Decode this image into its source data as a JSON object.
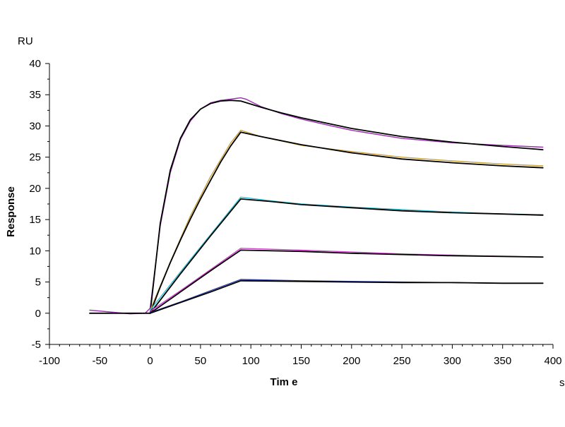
{
  "chart_data": {
    "type": "line",
    "title": "",
    "xlabel": "Tim e",
    "ylabel": "Response",
    "x_unit": "s",
    "y_unit": "RU",
    "xlim": [
      -100,
      400
    ],
    "ylim": [
      -5,
      40
    ],
    "x_ticks": [
      -100,
      -50,
      0,
      50,
      100,
      150,
      200,
      250,
      300,
      350,
      400
    ],
    "y_ticks": [
      -5,
      0,
      5,
      10,
      15,
      20,
      25,
      30,
      35,
      40
    ],
    "x_tick_labels": [
      "-100",
      "-50",
      "0",
      "50",
      "100",
      "150",
      "200",
      "250",
      "300",
      "350",
      "400"
    ],
    "y_tick_labels": [
      "-5",
      "0",
      "5",
      "10",
      "15",
      "20",
      "25",
      "30",
      "35",
      "40"
    ],
    "grid": false,
    "legend": "none",
    "series": [
      {
        "color": "#9a2fb0",
        "role": "measured",
        "points": [
          [
            -60,
            0.5
          ],
          [
            -40,
            0.2
          ],
          [
            -20,
            -0.1
          ],
          [
            -5,
            0
          ],
          [
            0,
            0.8
          ],
          [
            10,
            14
          ],
          [
            20,
            22.5
          ],
          [
            30,
            27.8
          ],
          [
            40,
            30.8
          ],
          [
            50,
            32.7
          ],
          [
            60,
            33.7
          ],
          [
            70,
            34.1
          ],
          [
            80,
            34.3
          ],
          [
            85,
            34.4
          ],
          [
            90,
            34.5
          ],
          [
            95,
            34.3
          ],
          [
            110,
            33.1
          ],
          [
            130,
            32
          ],
          [
            150,
            31.1
          ],
          [
            180,
            30
          ],
          [
            200,
            29.3
          ],
          [
            250,
            28
          ],
          [
            300,
            27.3
          ],
          [
            350,
            26.9
          ],
          [
            390,
            26.6
          ]
        ]
      },
      {
        "color": "#000000",
        "role": "fit",
        "points": [
          [
            -60,
            0
          ],
          [
            0,
            0
          ],
          [
            10,
            14.4
          ],
          [
            20,
            22.9
          ],
          [
            30,
            28
          ],
          [
            40,
            31
          ],
          [
            50,
            32.7
          ],
          [
            60,
            33.6
          ],
          [
            70,
            34
          ],
          [
            80,
            34.1
          ],
          [
            90,
            34
          ],
          [
            110,
            33
          ],
          [
            130,
            32.1
          ],
          [
            150,
            31.3
          ],
          [
            200,
            29.6
          ],
          [
            250,
            28.3
          ],
          [
            300,
            27.4
          ],
          [
            350,
            26.7
          ],
          [
            390,
            26.2
          ]
        ]
      },
      {
        "color": "#c9a33a",
        "role": "measured",
        "points": [
          [
            0,
            0.5
          ],
          [
            20,
            8.2
          ],
          [
            40,
            15.6
          ],
          [
            60,
            21.9
          ],
          [
            80,
            27.3
          ],
          [
            90,
            29.3
          ],
          [
            110,
            28.3
          ],
          [
            150,
            26.9
          ],
          [
            200,
            25.9
          ],
          [
            250,
            25
          ],
          [
            300,
            24.4
          ],
          [
            350,
            23.9
          ],
          [
            390,
            23.6
          ]
        ]
      },
      {
        "color": "#000000",
        "role": "fit",
        "points": [
          [
            0,
            0
          ],
          [
            10,
            4.2
          ],
          [
            20,
            8.1
          ],
          [
            30,
            11.7
          ],
          [
            40,
            15.1
          ],
          [
            50,
            18.3
          ],
          [
            60,
            21.3
          ],
          [
            70,
            24.2
          ],
          [
            80,
            26.8
          ],
          [
            90,
            29
          ],
          [
            110,
            28.3
          ],
          [
            150,
            27
          ],
          [
            200,
            25.7
          ],
          [
            250,
            24.7
          ],
          [
            300,
            24.1
          ],
          [
            350,
            23.6
          ],
          [
            390,
            23.3
          ]
        ]
      },
      {
        "color": "#2bc4d4",
        "role": "measured",
        "points": [
          [
            0,
            0.5
          ],
          [
            30,
            6.6
          ],
          [
            60,
            12.6
          ],
          [
            90,
            18.6
          ],
          [
            120,
            18
          ],
          [
            150,
            17.5
          ],
          [
            200,
            17
          ],
          [
            250,
            16.6
          ],
          [
            300,
            16.2
          ],
          [
            350,
            15.9
          ],
          [
            390,
            15.8
          ]
        ]
      },
      {
        "color": "#000000",
        "role": "fit",
        "points": [
          [
            0,
            0
          ],
          [
            30,
            6.3
          ],
          [
            60,
            12.4
          ],
          [
            90,
            18.3
          ],
          [
            120,
            17.9
          ],
          [
            150,
            17.4
          ],
          [
            200,
            16.9
          ],
          [
            250,
            16.4
          ],
          [
            300,
            16.1
          ],
          [
            350,
            15.9
          ],
          [
            390,
            15.7
          ]
        ]
      },
      {
        "color": "#d43fd0",
        "role": "measured",
        "points": [
          [
            0,
            0.3
          ],
          [
            30,
            3.6
          ],
          [
            60,
            7
          ],
          [
            90,
            10.4
          ],
          [
            150,
            10.1
          ],
          [
            200,
            9.8
          ],
          [
            250,
            9.5
          ],
          [
            300,
            9.3
          ],
          [
            350,
            9.1
          ],
          [
            390,
            9
          ]
        ]
      },
      {
        "color": "#000000",
        "role": "fit",
        "points": [
          [
            0,
            0
          ],
          [
            30,
            3.4
          ],
          [
            60,
            6.8
          ],
          [
            90,
            10.1
          ],
          [
            150,
            9.9
          ],
          [
            200,
            9.6
          ],
          [
            250,
            9.4
          ],
          [
            300,
            9.2
          ],
          [
            350,
            9.1
          ],
          [
            390,
            9
          ]
        ]
      },
      {
        "color": "#2a3a9a",
        "role": "measured",
        "points": [
          [
            0,
            0.1
          ],
          [
            30,
            1.8
          ],
          [
            60,
            3.6
          ],
          [
            90,
            5.4
          ],
          [
            150,
            5.2
          ],
          [
            200,
            5.1
          ],
          [
            250,
            5
          ],
          [
            300,
            4.9
          ],
          [
            350,
            4.8
          ],
          [
            390,
            4.8
          ]
        ]
      },
      {
        "color": "#000000",
        "role": "fit",
        "points": [
          [
            0,
            0
          ],
          [
            30,
            1.7
          ],
          [
            60,
            3.4
          ],
          [
            90,
            5.2
          ],
          [
            150,
            5.1
          ],
          [
            200,
            5
          ],
          [
            250,
            4.9
          ],
          [
            300,
            4.9
          ],
          [
            350,
            4.8
          ],
          [
            390,
            4.8
          ]
        ]
      }
    ]
  }
}
